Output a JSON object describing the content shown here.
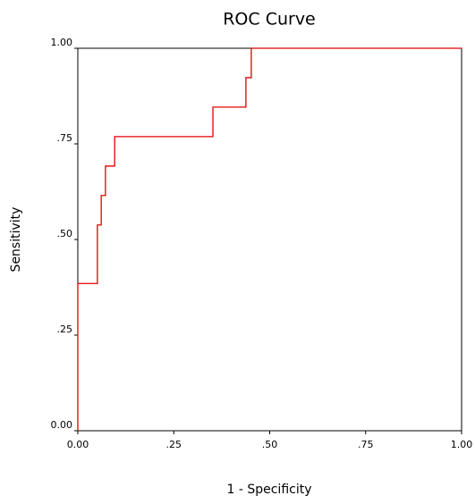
{
  "chart_data": {
    "type": "line",
    "title": "ROC Curve",
    "x_label": "1 - Specificity",
    "y_label": "Sensitivity",
    "x": [
      0,
      0,
      0.051,
      0.051,
      0.061,
      0.061,
      0.072,
      0.072,
      0.096,
      0.096,
      0.352,
      0.352,
      0.438,
      0.438,
      0.452,
      0.452,
      1
    ],
    "values": [
      0,
      0.385,
      0.385,
      0.538,
      0.538,
      0.615,
      0.615,
      0.692,
      0.692,
      0.769,
      0.769,
      0.846,
      0.846,
      0.923,
      0.923,
      1,
      1
    ],
    "color": "#e00000",
    "xlim": [
      0,
      1
    ],
    "ylim": [
      0,
      1
    ],
    "xticks": [
      {
        "value": 0,
        "label": "0.00"
      },
      {
        "value": 0.25,
        "label": ".25"
      },
      {
        "value": 0.5,
        "label": ".50"
      },
      {
        "value": 0.75,
        "label": ".75"
      },
      {
        "value": 1,
        "label": "1.00"
      }
    ],
    "yticks": [
      {
        "value": 0,
        "label": "0.00"
      },
      {
        "value": 0.25,
        "label": ".25"
      },
      {
        "value": 0.5,
        "label": ".50"
      },
      {
        "value": 0.75,
        "label": ".75"
      },
      {
        "value": 1,
        "label": "1.00"
      }
    ]
  }
}
